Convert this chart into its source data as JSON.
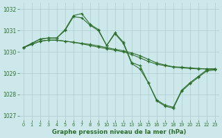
{
  "title": "Graphe pression niveau de la mer (hPa)",
  "bg_color": "#cce8ea",
  "grid_color": "#aacccc",
  "line_color": "#2d6e2d",
  "ylim": [
    1026.8,
    1032.3
  ],
  "xlim": [
    -0.5,
    23.5
  ],
  "yticks": [
    1027,
    1028,
    1029,
    1030,
    1031,
    1032
  ],
  "xticks": [
    0,
    1,
    2,
    3,
    4,
    5,
    6,
    7,
    8,
    9,
    10,
    11,
    12,
    13,
    14,
    15,
    16,
    17,
    18,
    19,
    20,
    21,
    22,
    23
  ],
  "line1_x": [
    0,
    1,
    2,
    3,
    4,
    5,
    6,
    7,
    8,
    9,
    10,
    11,
    12,
    13,
    14,
    15,
    16,
    17,
    18,
    19,
    20,
    21,
    22,
    23
  ],
  "line1_y": [
    1030.2,
    1030.4,
    1030.6,
    1030.65,
    1030.65,
    1031.05,
    1031.7,
    1031.8,
    1031.3,
    1031.05,
    1030.3,
    1030.9,
    1030.45,
    1029.5,
    1029.35,
    1028.55,
    1027.75,
    1027.5,
    1027.4,
    1028.2,
    1028.55,
    1028.85,
    1029.15,
    1029.2
  ],
  "line2_x": [
    0,
    1,
    2,
    3,
    4,
    5,
    6,
    7,
    8,
    9,
    10,
    11,
    12,
    13,
    14,
    15,
    16,
    17,
    18,
    19,
    20,
    21,
    22,
    23
  ],
  "line2_y": [
    1030.2,
    1030.4,
    1030.6,
    1030.65,
    1030.65,
    1031.0,
    1031.65,
    1031.6,
    1031.25,
    1031.0,
    1030.3,
    1030.85,
    1030.4,
    1029.45,
    1029.2,
    1028.55,
    1027.7,
    1027.45,
    1027.35,
    1028.15,
    1028.5,
    1028.8,
    1029.1,
    1029.15
  ],
  "line3_x": [
    0,
    1,
    2,
    3,
    4,
    5,
    6,
    7,
    8,
    9,
    10,
    11,
    12,
    13,
    14,
    15,
    16,
    17,
    18,
    19,
    20,
    21,
    22,
    23
  ],
  "line3_y": [
    1030.2,
    1030.35,
    1030.5,
    1030.55,
    1030.55,
    1030.5,
    1030.45,
    1030.4,
    1030.35,
    1030.28,
    1030.2,
    1030.12,
    1030.05,
    1029.95,
    1029.82,
    1029.65,
    1029.48,
    1029.38,
    1029.3,
    1029.28,
    1029.25,
    1029.22,
    1029.2,
    1029.2
  ],
  "line4_x": [
    0,
    1,
    2,
    3,
    4,
    5,
    6,
    7,
    8,
    9,
    10,
    11,
    12,
    13,
    14,
    15,
    16,
    17,
    18,
    19,
    20,
    21,
    22,
    23
  ],
  "line4_y": [
    1030.2,
    1030.35,
    1030.5,
    1030.55,
    1030.55,
    1030.5,
    1030.45,
    1030.38,
    1030.3,
    1030.22,
    1030.15,
    1030.08,
    1030.0,
    1029.88,
    1029.72,
    1029.55,
    1029.42,
    1029.35,
    1029.28,
    1029.25,
    1029.22,
    1029.2,
    1029.2,
    1029.2
  ]
}
